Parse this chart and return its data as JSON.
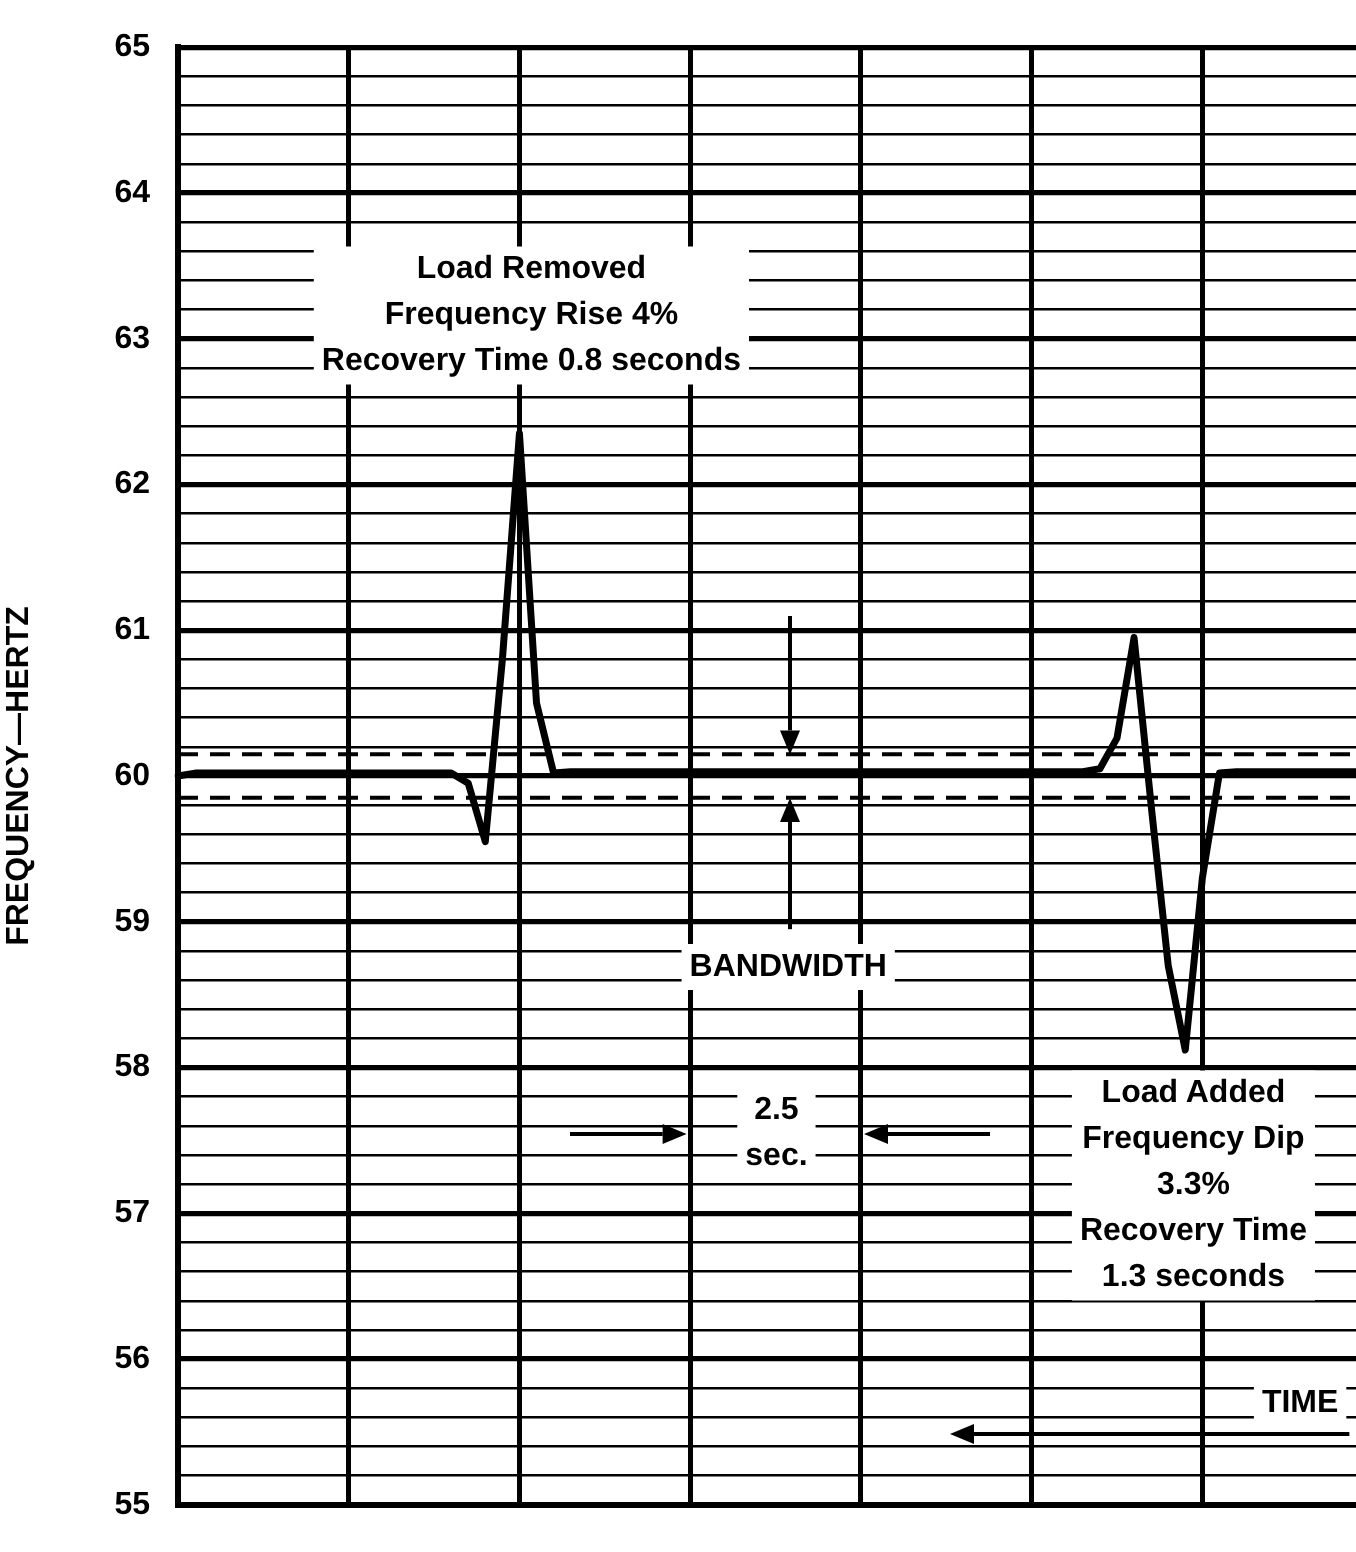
{
  "chart_data": {
    "type": "line",
    "ylabel": "FREQUENCY—HERTZ",
    "categories": [
      null,
      null,
      null,
      null,
      null,
      null,
      null,
      null,
      null,
      null,
      null,
      null,
      null,
      null,
      null,
      null,
      null,
      null,
      null,
      null,
      null,
      null,
      null,
      null,
      null,
      null,
      null,
      null,
      null,
      null,
      null,
      null,
      null,
      null,
      null,
      null,
      null,
      null,
      null,
      null,
      null,
      null,
      null,
      null,
      null,
      null,
      null,
      null,
      null,
      null,
      null,
      null,
      null,
      null,
      null,
      null,
      null,
      null,
      null,
      null,
      null,
      null,
      null,
      null,
      null,
      null,
      null,
      null,
      null,
      null
    ],
    "series": [
      {
        "type": "line",
        "color": "#000000",
        "values": [
          60.0,
          60.02,
          60.02,
          60.02,
          60.02,
          60.02,
          60.02,
          60.02,
          60.02,
          60.02,
          60.02,
          60.02,
          60.02,
          60.02,
          60.02,
          60.02,
          60.02,
          59.95,
          59.55,
          60.8,
          62.35,
          60.5,
          60.02,
          60.03,
          60.03,
          60.03,
          60.03,
          60.03,
          60.03,
          60.03,
          60.03,
          60.03,
          60.03,
          60.03,
          60.03,
          60.03,
          60.03,
          60.03,
          60.03,
          60.03,
          60.03,
          60.03,
          60.03,
          60.03,
          60.03,
          60.03,
          60.03,
          60.03,
          60.03,
          60.03,
          60.03,
          60.03,
          60.03,
          60.03,
          60.05,
          60.26,
          60.95,
          59.8,
          58.7,
          58.12,
          59.3,
          60.02,
          60.03,
          60.03,
          60.03,
          60.03,
          60.03,
          60.03,
          60.03,
          60.03
        ]
      }
    ],
    "ylim": [
      55,
      65
    ],
    "yticks": [
      55,
      {
        "value": 55.2,
        "label": null
      },
      {
        "value": 55.4,
        "label": null
      },
      {
        "value": 55.6,
        "label": null
      },
      {
        "value": 55.8,
        "label": null
      },
      56,
      {
        "value": 56.2,
        "label": null
      },
      {
        "value": 56.4,
        "label": null
      },
      {
        "value": 56.6,
        "label": null
      },
      {
        "value": 56.8,
        "label": null
      },
      57,
      {
        "value": 57.2,
        "label": null
      },
      {
        "value": 57.4,
        "label": null
      },
      {
        "value": 57.6,
        "label": null
      },
      {
        "value": 57.8,
        "label": null
      },
      58,
      {
        "value": 58.2,
        "label": null
      },
      {
        "value": 58.4,
        "label": null
      },
      {
        "value": 58.6,
        "label": null
      },
      {
        "value": 58.8,
        "label": null
      },
      59,
      {
        "value": 59.2,
        "label": null
      },
      {
        "value": 59.4,
        "label": null
      },
      {
        "value": 59.6,
        "label": null
      },
      {
        "value": 59.8,
        "label": null
      },
      60,
      {
        "value": 60.2,
        "label": null
      },
      {
        "value": 60.4,
        "label": null
      },
      {
        "value": 60.6,
        "label": null
      },
      {
        "value": 60.8,
        "label": null
      },
      61,
      {
        "value": 61.2,
        "label": null
      },
      {
        "value": 61.4,
        "label": null
      },
      {
        "value": 61.6,
        "label": null
      },
      {
        "value": 61.8,
        "label": null
      },
      62,
      {
        "value": 62.2,
        "label": null
      },
      {
        "value": 62.4,
        "label": null
      },
      {
        "value": 62.6,
        "label": null
      },
      {
        "value": 62.8,
        "label": null
      },
      63,
      {
        "value": 63.2,
        "label": null
      },
      {
        "value": 63.4,
        "label": null
      },
      {
        "value": 63.6,
        "label": null
      },
      {
        "value": 63.8,
        "label": null
      },
      64,
      {
        "value": 64.2,
        "label": null
      },
      {
        "value": 64.4,
        "label": null
      },
      {
        "value": 64.6,
        "label": null
      },
      {
        "value": 64.8,
        "label": null
      },
      65
    ],
    "tick_labels": "y",
    "grid": true,
    "legend": false,
    "marker": "none",
    "line_style": "solid",
    "ref_lines": [
      {
        "axis": "y",
        "value": 60.15,
        "color": "#000000",
        "line_style": "dashed"
      },
      {
        "axis": "y",
        "value": 59.85,
        "color": "#000000",
        "line_style": "dashed"
      }
    ],
    "annotations": [
      "Load Removed\nFrequency Rise 4%\nRecovery Time 0.8 seconds",
      "BANDWIDTH",
      "2.5\nsec.",
      "Load Added\nFrequency Dip\n3.3%\nRecovery Time\n1.3 seconds",
      "TIME"
    ]
  }
}
